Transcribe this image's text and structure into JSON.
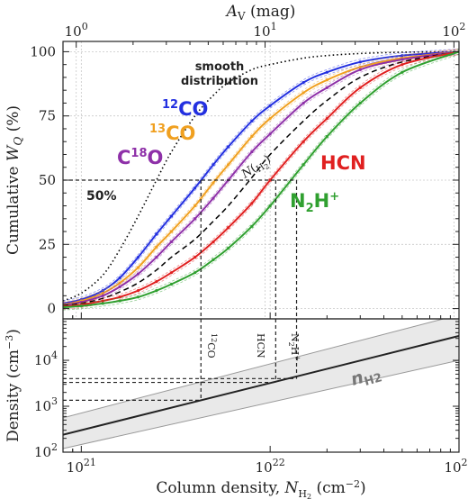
{
  "chart_data": [
    {
      "type": "line",
      "panel": "top",
      "xscale": "log",
      "xlim": [
        8e+20,
        1e+23
      ],
      "ylim": [
        -4,
        104
      ],
      "top_axis": {
        "label_main": "A",
        "label_sub": "V",
        "label_unit": " (mag)",
        "ticks": [
          "10",
          "10",
          "10"
        ],
        "tick_exponents": [
          "0",
          "1",
          "2"
        ],
        "tick_values": [
          9.4e+20,
          9.4e+21,
          9.4e+22
        ]
      },
      "ylabel_main": "Cumulative ",
      "ylabel_var": "W",
      "ylabel_sub": "Q",
      "ylabel_unit": " (%)",
      "y_ticks": [
        0,
        25,
        50,
        75,
        100
      ],
      "y_tick_labels": [
        "0",
        "25",
        "50",
        "75",
        "100"
      ],
      "grid": true,
      "series": [
        {
          "name": "smooth distribution",
          "color": "#000000",
          "style": "dotted",
          "x": [
            8e+20,
            1e+21,
            1.3e+21,
            1.6e+21,
            2e+21,
            2.5e+21,
            3e+21,
            4e+21,
            5e+21,
            6e+21,
            8e+21,
            1e+22,
            1.5e+22,
            2e+22,
            3e+22,
            5e+22,
            1e+23
          ],
          "y": [
            3,
            6,
            13,
            23,
            36,
            50,
            61,
            75,
            83,
            88,
            93,
            95,
            97.5,
            98.5,
            99.3,
            99.8,
            100
          ]
        },
        {
          "name": "12CO",
          "color": "#2330e0",
          "style": "solid",
          "x": [
            8e+20,
            1e+21,
            1.3e+21,
            1.6e+21,
            2e+21,
            2.5e+21,
            3e+21,
            4e+21,
            5e+21,
            6e+21,
            8e+21,
            1e+22,
            1.5e+22,
            2e+22,
            3e+22,
            5e+22,
            1e+23
          ],
          "y": [
            2,
            3.5,
            7,
            12,
            20,
            29,
            36,
            47,
            56,
            63,
            73,
            79,
            88,
            92,
            96,
            98.5,
            100
          ]
        },
        {
          "name": "13CO",
          "color": "#f0a020",
          "style": "solid",
          "x": [
            8e+20,
            1e+21,
            1.3e+21,
            1.6e+21,
            2e+21,
            2.5e+21,
            3e+21,
            4e+21,
            5e+21,
            6e+21,
            8e+21,
            1e+22,
            1.5e+22,
            2e+22,
            3e+22,
            5e+22,
            1e+23
          ],
          "y": [
            1.5,
            3,
            6,
            10,
            16,
            24,
            30,
            40,
            49,
            56,
            67,
            74,
            84,
            89,
            94,
            97.5,
            100
          ]
        },
        {
          "name": "C18O",
          "color": "#8e30a8",
          "style": "solid",
          "x": [
            8e+20,
            1e+21,
            1.3e+21,
            1.6e+21,
            2e+21,
            2.5e+21,
            3e+21,
            4e+21,
            5e+21,
            6e+21,
            8e+21,
            1e+22,
            1.5e+22,
            2e+22,
            3e+22,
            5e+22,
            1e+23
          ],
          "y": [
            1.2,
            2.5,
            5,
            8.5,
            13.5,
            20,
            26,
            35,
            43,
            50,
            61,
            68,
            80,
            86,
            93,
            97,
            100
          ]
        },
        {
          "name": "N(H2)",
          "color": "#000000",
          "style": "dashed",
          "x": [
            8e+20,
            1e+21,
            1.3e+21,
            1.6e+21,
            2e+21,
            2.5e+21,
            3e+21,
            4e+21,
            5e+21,
            6e+21,
            8e+21,
            1e+22,
            1.5e+22,
            2e+22,
            3e+22,
            5e+22,
            1e+23
          ],
          "y": [
            1.2,
            2,
            4,
            6.5,
            10,
            15,
            20,
            27,
            34,
            40,
            51,
            60,
            73,
            81,
            90,
            96,
            100
          ]
        },
        {
          "name": "HCN",
          "color": "#e02020",
          "style": "solid",
          "x": [
            8e+20,
            1e+21,
            1.3e+21,
            1.6e+21,
            2e+21,
            2.5e+21,
            3e+21,
            4e+21,
            5e+21,
            6e+21,
            8e+21,
            1e+22,
            1.5e+22,
            2e+22,
            3e+22,
            5e+22,
            1e+23
          ],
          "y": [
            0.8,
            1.5,
            3,
            4.5,
            7,
            10.5,
            14,
            20,
            26,
            31.5,
            41,
            50,
            65,
            74,
            86,
            95,
            100
          ]
        },
        {
          "name": "N2H+",
          "color": "#30a030",
          "style": "solid",
          "x": [
            8e+20,
            1e+21,
            1.3e+21,
            1.6e+21,
            2e+21,
            2.5e+21,
            3e+21,
            4e+21,
            5e+21,
            6e+21,
            8e+21,
            1e+22,
            1.5e+22,
            2e+22,
            3e+22,
            5e+22,
            1e+23
          ],
          "y": [
            0.5,
            1,
            2,
            3,
            4.5,
            7,
            9.5,
            14,
            19,
            23.5,
            32,
            40,
            56,
            67,
            80,
            92,
            100
          ]
        }
      ],
      "half_marks": [
        {
          "species": "12CO",
          "x": 4.3e+21
        },
        {
          "species": "HCN",
          "x": 1.07e+22
        },
        {
          "species": "N2H+",
          "x": 1.38e+22
        }
      ],
      "annotations": {
        "fifty": "50%",
        "smooth_line1": "smooth",
        "smooth_line2": "distribution",
        "nh2_main": "N",
        "nh2_sub": "H",
        "nh2_subsub": "2",
        "co12_sup": "12",
        "co12_main": "CO",
        "co13_sup": "13",
        "co13_main": "CO",
        "c18o_pre": "C",
        "c18o_sup": "18",
        "c18o_post": "O",
        "hcn": "HCN",
        "n2h_pre": "N",
        "n2h_sub": "2",
        "n2h_post": "H",
        "n2h_sup": "+"
      }
    },
    {
      "type": "line",
      "panel": "bottom",
      "xscale": "log",
      "yscale": "log",
      "xlim": [
        8e+20,
        1e+23
      ],
      "ylim": [
        100,
        80000
      ],
      "ylabel": "Density (cm",
      "ylabel_exp": "−3",
      "ylabel_close": ")",
      "xlabel": "Column density, ",
      "xlabel_var": "N",
      "xlabel_sub": "H",
      "xlabel_subsub": "2",
      "xlabel_unit": " (cm",
      "xlabel_exp": "−2",
      "xlabel_close": ")",
      "x_ticks": [
        1e+21,
        1e+22,
        1e+23
      ],
      "x_tick_bases": [
        "10",
        "10",
        "10"
      ],
      "x_tick_exponents": [
        "21",
        "22",
        "23"
      ],
      "y_ticks": [
        100,
        1000,
        10000
      ],
      "y_tick_bases": [
        "10",
        "10",
        "10"
      ],
      "y_tick_exponents": [
        "2",
        "3",
        "4"
      ],
      "series": [
        {
          "name": "nH2",
          "color": "#222222",
          "x": [
            8e+20,
            1e+23
          ],
          "y": [
            240,
            34000
          ],
          "band_low": [
            120,
            10000
          ],
          "band_high": [
            560,
            98000
          ]
        }
      ],
      "band_label": "n",
      "band_label_sub": "H2",
      "markers": [
        {
          "label_sup": "12",
          "label_main": "CO",
          "x": 4.3e+21,
          "density": 1350
        },
        {
          "label": "HCN",
          "x": 1.07e+22,
          "density": 3300
        },
        {
          "label_pre": "N",
          "label_sub": "2",
          "label_post": "H",
          "label_sup": "+",
          "x": 1.38e+22,
          "density": 4000
        }
      ]
    }
  ]
}
